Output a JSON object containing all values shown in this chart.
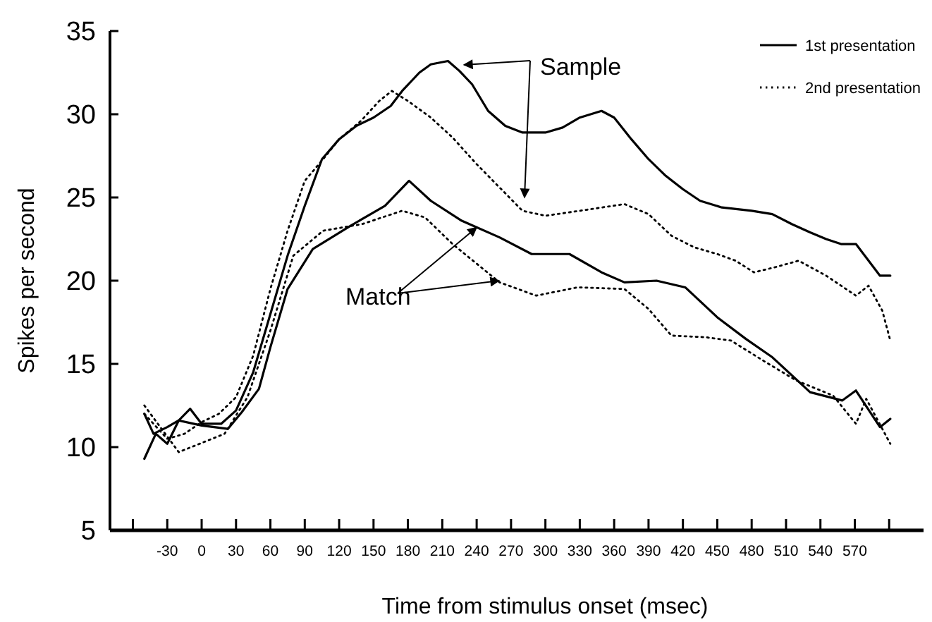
{
  "chart_data": {
    "type": "line",
    "xlabel": "Time from stimulus onset (msec)",
    "ylabel": "Spikes per second",
    "xlim": [
      -80,
      630
    ],
    "ylim": [
      5,
      35
    ],
    "xticks": [
      {
        "value": -60,
        "label": null
      },
      -30,
      0,
      30,
      60,
      90,
      120,
      150,
      180,
      210,
      240,
      270,
      300,
      330,
      360,
      390,
      420,
      450,
      480,
      510,
      540,
      570,
      {
        "value": 600,
        "label": null
      }
    ],
    "yticks": [
      5,
      10,
      15,
      20,
      25,
      30,
      35
    ],
    "grid": false,
    "legend": "top right",
    "marker": "none",
    "annotations": [
      "Sample",
      {
        "text": "Match",
        "x": 240,
        "y": 23.2
      }
    ],
    "series": [
      {
        "name": "1st presentation",
        "color": "#000000",
        "line_style": "solid",
        "x": [
          -50,
          -42,
          -30,
          -20,
          -10,
          0,
          17,
          30,
          45,
          60,
          75,
          90,
          105,
          120,
          135,
          150,
          165,
          175,
          190,
          200,
          215,
          225,
          236,
          250,
          265,
          280,
          300,
          315,
          330,
          349,
          360,
          375,
          390,
          405,
          420,
          435,
          454,
          480,
          498,
          515,
          531,
          545,
          558,
          571,
          592,
          601
        ],
        "values": [
          12,
          10.8,
          11.2,
          11.6,
          12.3,
          11.4,
          11.4,
          12.2,
          14.5,
          18,
          21.5,
          24.5,
          27.3,
          28.5,
          29.3,
          29.8,
          30.5,
          31.4,
          32.5,
          33,
          33.2,
          32.6,
          31.8,
          30.2,
          29.3,
          28.9,
          28.9,
          29.2,
          29.8,
          30.2,
          29.8,
          28.5,
          27.3,
          26.3,
          25.5,
          24.8,
          24.4,
          24.2,
          24,
          23.4,
          22.9,
          22.5,
          22.2,
          22.2,
          20.3,
          20.3
        ]
      },
      {
        "name": "2nd presentation",
        "color": "#000000",
        "line_style": "dotted",
        "x": [
          -50,
          -30,
          -15,
          0,
          15,
          30,
          45,
          60,
          75,
          90,
          106,
          120,
          139,
          155,
          166,
          180,
          200,
          219,
          240,
          260,
          280,
          300,
          330,
          369,
          390,
          410,
          430,
          450,
          466,
          482,
          500,
          521,
          545,
          571,
          582,
          594,
          601
        ],
        "values": [
          12,
          10.5,
          10.8,
          11.5,
          12,
          13,
          15.5,
          19.5,
          23,
          26,
          27.3,
          28.5,
          29.6,
          30.8,
          31.4,
          30.8,
          29.8,
          28.6,
          27,
          25.6,
          24.2,
          23.9,
          24.2,
          24.6,
          24,
          22.7,
          22,
          21.6,
          21.2,
          20.5,
          20.8,
          21.2,
          20.3,
          19.1,
          19.7,
          18.2,
          16.4
        ]
      },
      {
        "color": "#000000",
        "line_style": "solid",
        "x": [
          -50,
          -40,
          -30,
          -20,
          0,
          23,
          35,
          50,
          60,
          75,
          97,
          130,
          160,
          181,
          200,
          227,
          260,
          288,
          321,
          349,
          369,
          397,
          422,
          450,
          475,
          498,
          531,
          559,
          571,
          592,
          601
        ],
        "values": [
          9.3,
          10.8,
          10.2,
          11.6,
          11.3,
          11.1,
          12.1,
          13.5,
          16,
          19.5,
          21.9,
          23.3,
          24.5,
          26,
          24.8,
          23.6,
          22.6,
          21.6,
          21.6,
          20.5,
          19.9,
          20,
          19.6,
          17.8,
          16.5,
          15.4,
          13.3,
          12.8,
          13.4,
          11.2,
          11.7
        ]
      },
      {
        "color": "#000000",
        "line_style": "dotted",
        "x": [
          -50,
          -20,
          20,
          40,
          60,
          80,
          106,
          140,
          175,
          195,
          219,
          260,
          292,
          328,
          369,
          390,
          410,
          440,
          462,
          490,
          519,
          551,
          571,
          580,
          601
        ],
        "values": [
          12.5,
          9.7,
          10.8,
          13,
          17,
          21.5,
          23,
          23.4,
          24.2,
          23.8,
          22.2,
          19.9,
          19.1,
          19.6,
          19.5,
          18.3,
          16.7,
          16.6,
          16.4,
          15.2,
          14,
          13.1,
          11.4,
          12.9,
          10.2
        ]
      }
    ]
  }
}
